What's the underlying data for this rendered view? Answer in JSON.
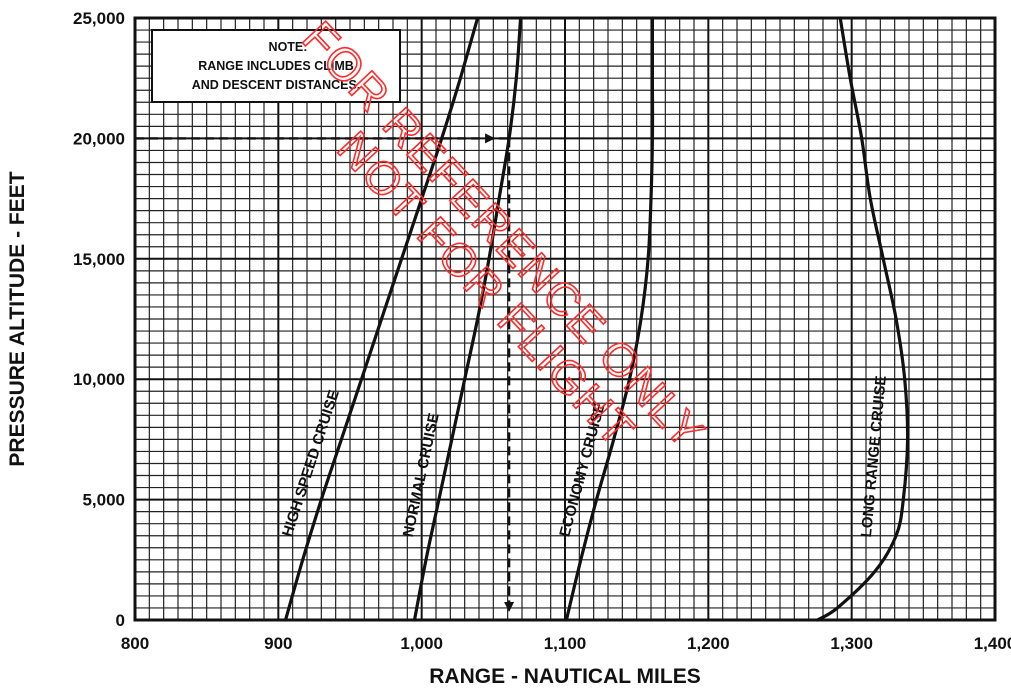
{
  "chart_data": {
    "type": "line",
    "xlabel": "RANGE - NAUTICAL MILES",
    "ylabel": "PRESSURE ALTITUDE - FEET",
    "xlim": [
      800,
      1400
    ],
    "ylim": [
      0,
      25000
    ],
    "x_ticks": [
      "800",
      "900",
      "1,000",
      "1,100",
      "1,200",
      "1,300",
      "1,400"
    ],
    "y_ticks": [
      "0",
      "5,000",
      "10,000",
      "15,000",
      "20,000",
      "25,000"
    ],
    "grid": true,
    "note": [
      "NOTE:",
      "RANGE INCLUDES CLIMB",
      "AND DESCENT DISTANCES."
    ],
    "watermark": [
      "FOR REFERENCE ONLY",
      "NOT FOR FLIGHT"
    ],
    "series": [
      {
        "name": "HIGH SPEED CRUISE",
        "x": [
          905,
          917,
          930,
          944,
          958,
          972,
          986,
          1000,
          1014,
          1027,
          1039
        ],
        "y": [
          0,
          2500,
          5000,
          7500,
          10000,
          12500,
          15000,
          17500,
          20000,
          22500,
          25000
        ]
      },
      {
        "name": "NORMAL CRUISE",
        "x": [
          995,
          1003,
          1012,
          1021,
          1030,
          1039,
          1047,
          1054,
          1061,
          1066,
          1069
        ],
        "y": [
          0,
          2500,
          5000,
          7500,
          10000,
          12500,
          15000,
          17500,
          20000,
          22500,
          25000
        ]
      },
      {
        "name": "ECONOMY CRUISE",
        "x": [
          1101,
          1111,
          1122,
          1134,
          1145,
          1153,
          1158,
          1160,
          1161,
          1161,
          1161
        ],
        "y": [
          0,
          2500,
          5000,
          7500,
          10000,
          12500,
          15000,
          17500,
          20000,
          22500,
          25000
        ]
      },
      {
        "name": "LONG RANGE CRUISE",
        "x": [
          1276,
          1290,
          1316,
          1331,
          1336,
          1339,
          1337,
          1331,
          1322,
          1313,
          1307,
          1299,
          1292
        ],
        "y": [
          0,
          500,
          2000,
          3500,
          5000,
          7500,
          10000,
          12500,
          15000,
          17500,
          20000,
          22500,
          25000
        ]
      }
    ],
    "annotations": {
      "example_path": {
        "from": [
          800,
          20000
        ],
        "corner": [
          1061,
          20000
        ],
        "to": [
          1061,
          0
        ]
      }
    }
  }
}
